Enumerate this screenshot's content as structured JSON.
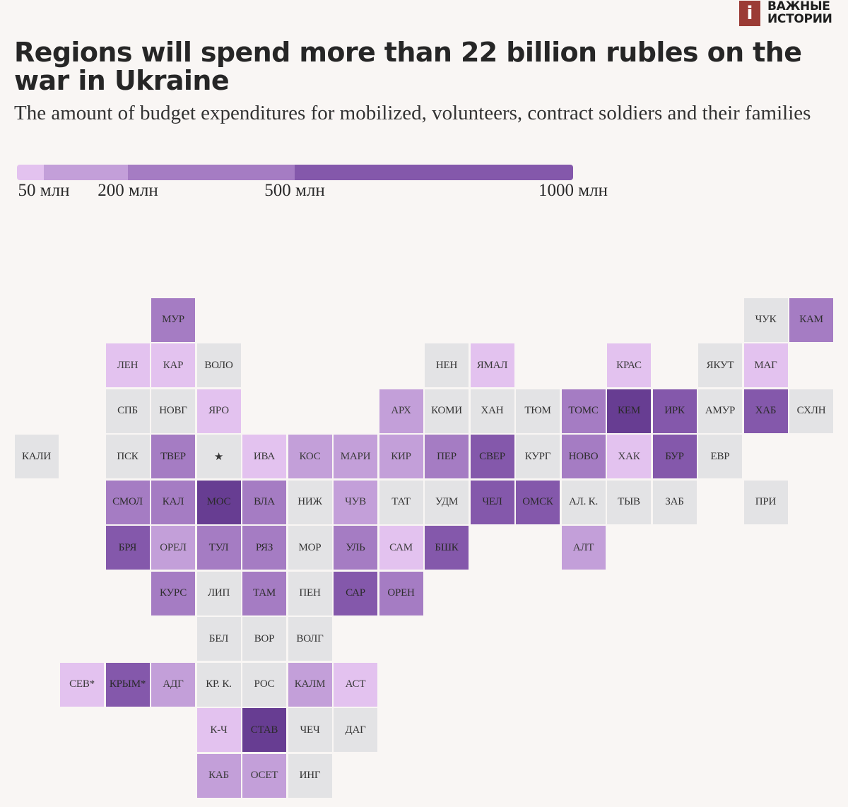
{
  "brand": {
    "mark": "i",
    "line1": "ВАЖНЫЕ",
    "line2": "ИСТОРИИ"
  },
  "chart_data": {
    "type": "heatmap",
    "title": "Regions will spend more than 22 billion rubles on the war in Ukraine",
    "subtitle": "The amount of budget expenditures for mobilized, volunteers, contract soldiers and their families",
    "legend": {
      "labels": [
        "50 млн",
        "200 млн",
        "500 млн",
        "1000 млн"
      ],
      "breaks": [
        0,
        50,
        200,
        500,
        1000
      ],
      "classes": [
        {
          "max": 50,
          "color": "#e3c2ef"
        },
        {
          "max": 200,
          "color": "#c39fd9"
        },
        {
          "max": 500,
          "color": "#a57cc3"
        },
        {
          "max": 1000,
          "color": "#8458ab"
        }
      ],
      "top_color": "#673d92",
      "nodata_color": "#e3e3e5"
    },
    "regions": [
      {
        "label": "МУР",
        "col": 3,
        "row": 0,
        "cls": 3
      },
      {
        "label": "ЧУК",
        "col": 16,
        "row": 0,
        "cls": 0
      },
      {
        "label": "КАМ",
        "col": 17,
        "row": 0,
        "cls": 3
      },
      {
        "label": "ЛЕН",
        "col": 2,
        "row": 1,
        "cls": 1
      },
      {
        "label": "КАР",
        "col": 3,
        "row": 1,
        "cls": 1
      },
      {
        "label": "ВОЛО",
        "col": 4,
        "row": 1,
        "cls": 0
      },
      {
        "label": "НЕН",
        "col": 9,
        "row": 1,
        "cls": 0
      },
      {
        "label": "ЯМАЛ",
        "col": 10,
        "row": 1,
        "cls": 1
      },
      {
        "label": "КРАС",
        "col": 13,
        "row": 1,
        "cls": 1
      },
      {
        "label": "ЯКУТ",
        "col": 15,
        "row": 1,
        "cls": 0
      },
      {
        "label": "МАГ",
        "col": 16,
        "row": 1,
        "cls": 1
      },
      {
        "label": "СПБ",
        "col": 2,
        "row": 2,
        "cls": 0
      },
      {
        "label": "НОВГ",
        "col": 3,
        "row": 2,
        "cls": 0
      },
      {
        "label": "ЯРО",
        "col": 4,
        "row": 2,
        "cls": 1
      },
      {
        "label": "АРХ",
        "col": 8,
        "row": 2,
        "cls": 2
      },
      {
        "label": "КОМИ",
        "col": 9,
        "row": 2,
        "cls": 0
      },
      {
        "label": "ХАН",
        "col": 10,
        "row": 2,
        "cls": 0
      },
      {
        "label": "ТЮМ",
        "col": 11,
        "row": 2,
        "cls": 0
      },
      {
        "label": "ТОМС",
        "col": 12,
        "row": 2,
        "cls": 3
      },
      {
        "label": "КЕМ",
        "col": 13,
        "row": 2,
        "cls": 5
      },
      {
        "label": "ИРК",
        "col": 14,
        "row": 2,
        "cls": 4
      },
      {
        "label": "АМУР",
        "col": 15,
        "row": 2,
        "cls": 0
      },
      {
        "label": "ХАБ",
        "col": 16,
        "row": 2,
        "cls": 4
      },
      {
        "label": "СХЛН",
        "col": 17,
        "row": 2,
        "cls": 0
      },
      {
        "label": "КАЛИ",
        "col": 0,
        "row": 3,
        "cls": 0
      },
      {
        "label": "ПСК",
        "col": 2,
        "row": 3,
        "cls": 0
      },
      {
        "label": "ТВЕР",
        "col": 3,
        "row": 3,
        "cls": 3
      },
      {
        "label": "★",
        "col": 4,
        "row": 3,
        "cls": 0
      },
      {
        "label": "ИВА",
        "col": 5,
        "row": 3,
        "cls": 1
      },
      {
        "label": "КОС",
        "col": 6,
        "row": 3,
        "cls": 2
      },
      {
        "label": "МАРИ",
        "col": 7,
        "row": 3,
        "cls": 2
      },
      {
        "label": "КИР",
        "col": 8,
        "row": 3,
        "cls": 2
      },
      {
        "label": "ПЕР",
        "col": 9,
        "row": 3,
        "cls": 3
      },
      {
        "label": "СВЕР",
        "col": 10,
        "row": 3,
        "cls": 4
      },
      {
        "label": "КУРГ",
        "col": 11,
        "row": 3,
        "cls": 0
      },
      {
        "label": "НОВО",
        "col": 12,
        "row": 3,
        "cls": 3
      },
      {
        "label": "ХАК",
        "col": 13,
        "row": 3,
        "cls": 1
      },
      {
        "label": "БУР",
        "col": 14,
        "row": 3,
        "cls": 4
      },
      {
        "label": "ЕВР",
        "col": 15,
        "row": 3,
        "cls": 0
      },
      {
        "label": "СМОЛ",
        "col": 2,
        "row": 4,
        "cls": 3
      },
      {
        "label": "КАЛ",
        "col": 3,
        "row": 4,
        "cls": 3
      },
      {
        "label": "МОС",
        "col": 4,
        "row": 4,
        "cls": 5
      },
      {
        "label": "ВЛА",
        "col": 5,
        "row": 4,
        "cls": 3
      },
      {
        "label": "НИЖ",
        "col": 6,
        "row": 4,
        "cls": 0
      },
      {
        "label": "ЧУВ",
        "col": 7,
        "row": 4,
        "cls": 2
      },
      {
        "label": "ТАТ",
        "col": 8,
        "row": 4,
        "cls": 0
      },
      {
        "label": "УДМ",
        "col": 9,
        "row": 4,
        "cls": 0
      },
      {
        "label": "ЧЕЛ",
        "col": 10,
        "row": 4,
        "cls": 4
      },
      {
        "label": "ОМСК",
        "col": 11,
        "row": 4,
        "cls": 4
      },
      {
        "label": "АЛ. К.",
        "col": 12,
        "row": 4,
        "cls": 0
      },
      {
        "label": "ТЫВ",
        "col": 13,
        "row": 4,
        "cls": 0
      },
      {
        "label": "ЗАБ",
        "col": 14,
        "row": 4,
        "cls": 0
      },
      {
        "label": "ПРИ",
        "col": 16,
        "row": 4,
        "cls": 0
      },
      {
        "label": "БРЯ",
        "col": 2,
        "row": 5,
        "cls": 4
      },
      {
        "label": "ОРЕЛ",
        "col": 3,
        "row": 5,
        "cls": 2
      },
      {
        "label": "ТУЛ",
        "col": 4,
        "row": 5,
        "cls": 3
      },
      {
        "label": "РЯЗ",
        "col": 5,
        "row": 5,
        "cls": 3
      },
      {
        "label": "МОР",
        "col": 6,
        "row": 5,
        "cls": 0
      },
      {
        "label": "УЛЬ",
        "col": 7,
        "row": 5,
        "cls": 3
      },
      {
        "label": "САМ",
        "col": 8,
        "row": 5,
        "cls": 1
      },
      {
        "label": "БШК",
        "col": 9,
        "row": 5,
        "cls": 4
      },
      {
        "label": "АЛТ",
        "col": 12,
        "row": 5,
        "cls": 2
      },
      {
        "label": "КУРС",
        "col": 3,
        "row": 6,
        "cls": 3
      },
      {
        "label": "ЛИП",
        "col": 4,
        "row": 6,
        "cls": 0
      },
      {
        "label": "ТАМ",
        "col": 5,
        "row": 6,
        "cls": 3
      },
      {
        "label": "ПЕН",
        "col": 6,
        "row": 6,
        "cls": 0
      },
      {
        "label": "САР",
        "col": 7,
        "row": 6,
        "cls": 4
      },
      {
        "label": "ОРЕН",
        "col": 8,
        "row": 6,
        "cls": 3
      },
      {
        "label": "БЕЛ",
        "col": 4,
        "row": 7,
        "cls": 0
      },
      {
        "label": "ВОР",
        "col": 5,
        "row": 7,
        "cls": 0
      },
      {
        "label": "ВОЛГ",
        "col": 6,
        "row": 7,
        "cls": 0
      },
      {
        "label": "СЕВ*",
        "col": 1,
        "row": 8,
        "cls": 1
      },
      {
        "label": "КРЫМ*",
        "col": 2,
        "row": 8,
        "cls": 4
      },
      {
        "label": "АДГ",
        "col": 3,
        "row": 8,
        "cls": 2
      },
      {
        "label": "КР. К.",
        "col": 4,
        "row": 8,
        "cls": 0
      },
      {
        "label": "РОС",
        "col": 5,
        "row": 8,
        "cls": 0
      },
      {
        "label": "КАЛМ",
        "col": 6,
        "row": 8,
        "cls": 2
      },
      {
        "label": "АСТ",
        "col": 7,
        "row": 8,
        "cls": 1
      },
      {
        "label": "К-Ч",
        "col": 4,
        "row": 9,
        "cls": 1
      },
      {
        "label": "СТАВ",
        "col": 5,
        "row": 9,
        "cls": 5
      },
      {
        "label": "ЧЕЧ",
        "col": 6,
        "row": 9,
        "cls": 0
      },
      {
        "label": "ДАГ",
        "col": 7,
        "row": 9,
        "cls": 0
      },
      {
        "label": "КАБ",
        "col": 4,
        "row": 10,
        "cls": 2
      },
      {
        "label": "ОСЕТ",
        "col": 5,
        "row": 10,
        "cls": 2
      },
      {
        "label": "ИНГ",
        "col": 6,
        "row": 10,
        "cls": 0
      }
    ]
  }
}
